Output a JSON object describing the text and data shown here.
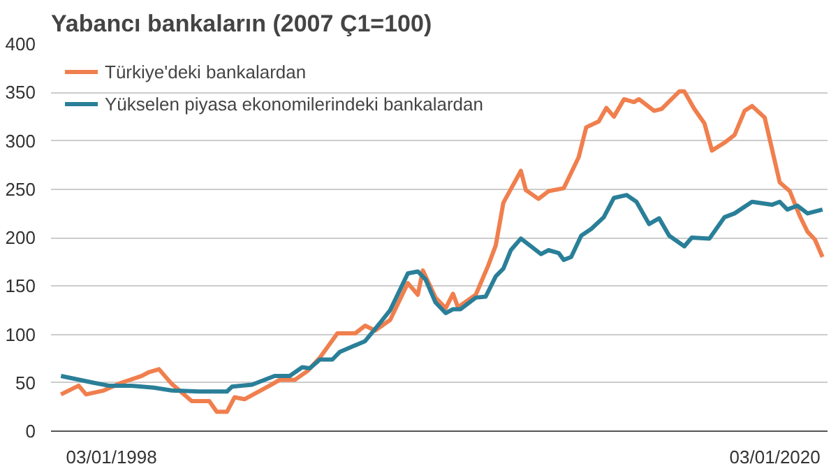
{
  "chart_data": {
    "type": "line",
    "title": "Yabancı bankaların (2007 Ç1=100)",
    "xlim": [
      "1996-01",
      "2021-10"
    ],
    "xticks": [
      {
        "value": "1998-01-03",
        "label": "03/01/1998"
      },
      {
        "value": "2020-01-03",
        "label": "03/01/2020"
      }
    ],
    "ylim": [
      0,
      400
    ],
    "yticks": [
      0,
      50,
      100,
      150,
      200,
      250,
      300,
      350,
      400
    ],
    "grid": "y",
    "legend": "top left",
    "marker": "none",
    "line_style": "solid",
    "series": [
      {
        "name": "Türkiye'deki bankalardan",
        "color": "#f07f4e",
        "x": [
          "1996-05",
          "1996-12",
          "1997-03",
          "1997-10",
          "1998-05",
          "1999-01",
          "1999-04",
          "1999-08",
          "2000-01",
          "2000-09",
          "2001-04",
          "2001-07",
          "2001-11",
          "2002-02",
          "2002-06",
          "2003-04",
          "2003-08",
          "2004-02",
          "2004-07",
          "2004-12",
          "2005-07",
          "2006-02",
          "2006-06",
          "2006-10",
          "2007-04",
          "2007-11",
          "2008-03",
          "2008-05",
          "2008-10",
          "2009-02",
          "2009-05",
          "2009-07",
          "2010-02",
          "2010-07",
          "2010-10",
          "2011-01",
          "2011-08",
          "2011-10",
          "2012-03",
          "2012-07",
          "2013-01",
          "2013-07",
          "2013-10",
          "2014-03",
          "2014-06",
          "2014-09",
          "2015-01",
          "2015-05",
          "2015-07",
          "2016-01",
          "2016-04",
          "2016-11",
          "2017-01",
          "2017-05",
          "2017-09",
          "2017-12",
          "2018-05",
          "2018-09",
          "2019-01",
          "2019-04",
          "2019-09",
          "2020-03",
          "2020-07",
          "2020-11",
          "2021-02",
          "2021-05",
          "2021-08"
        ],
        "values": [
          38,
          47,
          38,
          42,
          50,
          57,
          61,
          64,
          49,
          31,
          31,
          20,
          20,
          35,
          33,
          47,
          53,
          53,
          62,
          76,
          101,
          101,
          109,
          104,
          115,
          153,
          141,
          166,
          138,
          127,
          142,
          128,
          141,
          171,
          192,
          236,
          269,
          249,
          240,
          248,
          251,
          283,
          314,
          320,
          334,
          325,
          343,
          340,
          343,
          331,
          333,
          351,
          351,
          333,
          318,
          290,
          298,
          306,
          331,
          336,
          324,
          257,
          248,
          222,
          206,
          198,
          180
        ]
      },
      {
        "name": "Yükselen piyasa ekonomilerindeki bankalardan",
        "color": "#2a7f98",
        "x": [
          "1996-05",
          "1997-06",
          "1997-12",
          "1998-09",
          "1999-06",
          "2000-01",
          "2000-12",
          "2001-11",
          "2002-01",
          "2002-09",
          "2003-06",
          "2003-12",
          "2004-05",
          "2004-08",
          "2004-12",
          "2005-05",
          "2005-08",
          "2006-06",
          "2006-12",
          "2007-04",
          "2007-11",
          "2008-03",
          "2008-06",
          "2008-10",
          "2009-02",
          "2009-05",
          "2009-08",
          "2010-02",
          "2010-06",
          "2010-10",
          "2011-01",
          "2011-04",
          "2011-08",
          "2012-04",
          "2012-07",
          "2012-11",
          "2013-01",
          "2013-04",
          "2013-08",
          "2013-12",
          "2014-05",
          "2014-09",
          "2015-02",
          "2015-06",
          "2015-11",
          "2016-03",
          "2016-07",
          "2017-01",
          "2017-04",
          "2017-11",
          "2018-05",
          "2018-09",
          "2019-04",
          "2019-12",
          "2020-03",
          "2020-06",
          "2020-10",
          "2021-02",
          "2021-08"
        ],
        "values": [
          57,
          50,
          47,
          47,
          45,
          42,
          41,
          41,
          46,
          48,
          57,
          57,
          66,
          65,
          74,
          74,
          82,
          93,
          112,
          125,
          163,
          165,
          157,
          133,
          122,
          126,
          126,
          138,
          139,
          160,
          168,
          187,
          199,
          183,
          187,
          184,
          177,
          180,
          202,
          209,
          221,
          241,
          244,
          237,
          214,
          220,
          202,
          191,
          200,
          199,
          221,
          225,
          237,
          234,
          237,
          229,
          233,
          225,
          229
        ]
      }
    ]
  }
}
